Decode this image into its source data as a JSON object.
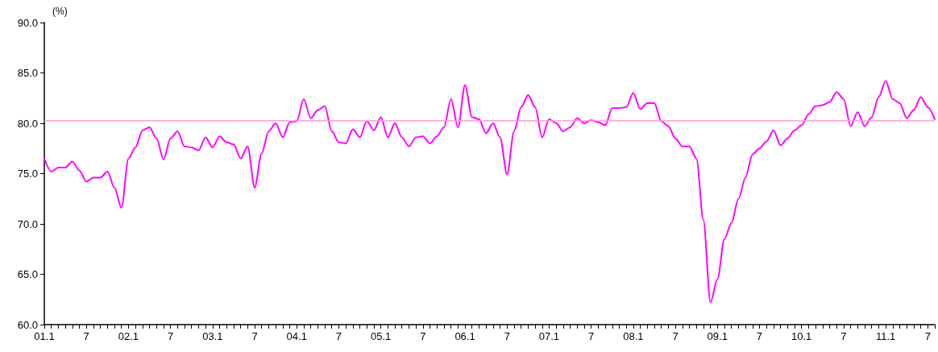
{
  "chart_data": {
    "type": "line",
    "ylabel": "(%)",
    "categories": [
      "01.1",
      null,
      null,
      null,
      null,
      null,
      "7",
      null,
      null,
      null,
      null,
      null,
      "02.1",
      null,
      null,
      null,
      null,
      null,
      "7",
      null,
      null,
      null,
      null,
      null,
      "03.1",
      null,
      null,
      null,
      null,
      null,
      "7",
      null,
      null,
      null,
      null,
      null,
      "04.1",
      null,
      null,
      null,
      null,
      null,
      "7",
      null,
      null,
      null,
      null,
      null,
      "05.1",
      null,
      null,
      null,
      null,
      null,
      "7",
      null,
      null,
      null,
      null,
      null,
      "06.1",
      null,
      null,
      null,
      null,
      null,
      "7",
      null,
      null,
      null,
      null,
      null,
      "07.1",
      null,
      null,
      null,
      null,
      null,
      "7",
      null,
      null,
      null,
      null,
      null,
      "08.1",
      null,
      null,
      null,
      null,
      null,
      "7",
      null,
      null,
      null,
      null,
      null,
      "09.1",
      null,
      null,
      null,
      null,
      null,
      "7",
      null,
      null,
      null,
      null,
      null,
      "10.1",
      null,
      null,
      null,
      null,
      null,
      "7",
      null,
      null,
      null,
      null,
      null,
      "11.1",
      null,
      null,
      null,
      null,
      null,
      "7",
      null
    ],
    "series": [
      {
        "color": "#ff00ff",
        "values": [
          76.5,
          75.2,
          75.6,
          75.6,
          76.2,
          75.3,
          74.2,
          74.6,
          74.6,
          75.2,
          73.6,
          71.6,
          76.5,
          77.6,
          79.3,
          79.6,
          78.5,
          76.4,
          78.5,
          79.2,
          77.7,
          77.6,
          77.3,
          78.6,
          77.6,
          78.7,
          78.1,
          77.9,
          76.5,
          77.7,
          73.6,
          77.0,
          79.2,
          80.0,
          78.6,
          80.1,
          80.2,
          82.4,
          80.5,
          81.3,
          81.7,
          79.2,
          78.1,
          78.0,
          79.4,
          78.6,
          80.2,
          79.3,
          80.6,
          78.6,
          80.0,
          78.6,
          77.7,
          78.6,
          78.7,
          78.0,
          78.7,
          79.6,
          82.4,
          79.6,
          83.8,
          80.6,
          80.4,
          79.0,
          80.0,
          78.6,
          74.9,
          79.2,
          81.6,
          82.8,
          81.6,
          78.6,
          80.4,
          80.0,
          79.2,
          79.6,
          80.5,
          80.0,
          80.3,
          80.1,
          79.8,
          81.5,
          81.5,
          81.6,
          83.0,
          81.4,
          82.0,
          82.0,
          80.2,
          79.7,
          78.5,
          77.7,
          77.7,
          76.5,
          70.4,
          62.2,
          64.5,
          68.5,
          70.1,
          72.5,
          74.6,
          76.9,
          77.5,
          78.2,
          79.3,
          77.8,
          78.5,
          79.3,
          79.8,
          80.9,
          81.7,
          81.8,
          82.1,
          83.1,
          82.4,
          79.7,
          81.1,
          79.7,
          80.6,
          82.6,
          84.2,
          82.4,
          82.0,
          80.5,
          81.3,
          82.6,
          81.6,
          80.4
        ]
      }
    ],
    "ylim": [
      60,
      90
    ],
    "yticks": [
      {
        "value": 60,
        "label": "60.0"
      },
      {
        "value": 65,
        "label": "65.0"
      },
      {
        "value": 70,
        "label": "70.0"
      },
      {
        "value": 75,
        "label": "75.0"
      },
      {
        "value": 80,
        "label": "80.0"
      },
      {
        "value": 85,
        "label": "85.0"
      },
      {
        "value": 90,
        "label": "90.0"
      }
    ],
    "ref_lines": [
      {
        "axis": "y",
        "value": 80.3,
        "color": "#ff99cc"
      }
    ],
    "grid": false,
    "marker": "none",
    "line_style": "solid"
  }
}
